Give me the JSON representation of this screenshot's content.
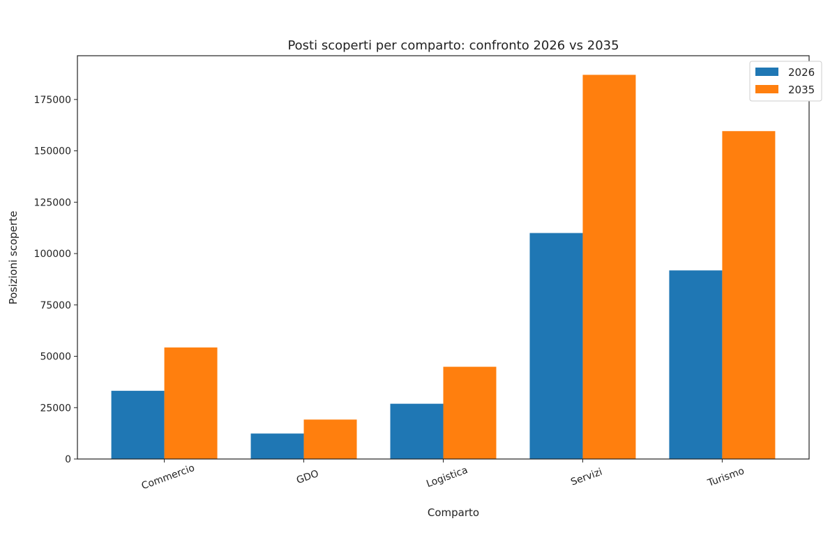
{
  "chart_data": {
    "type": "bar",
    "title": "Posti scoperti per comparto: confronto 2026 vs 2035",
    "xlabel": "Comparto",
    "ylabel": "Posizioni scoperte",
    "categories": [
      "Commercio",
      "GDO",
      "Logistica",
      "Servizi",
      "Turismo"
    ],
    "series": [
      {
        "name": "2026",
        "color": "#1f77b4",
        "values": [
          33200,
          12400,
          26900,
          110000,
          91800
        ]
      },
      {
        "name": "2035",
        "color": "#ff7f0e",
        "values": [
          54300,
          19200,
          44900,
          187000,
          159600
        ]
      }
    ],
    "yticks": [
      0,
      25000,
      50000,
      75000,
      100000,
      125000,
      150000,
      175000
    ],
    "ytick_labels": [
      "0",
      "25000",
      "50000",
      "75000",
      "100000",
      "125000",
      "150000",
      "175000"
    ],
    "ylim": [
      0,
      196300
    ],
    "grid": false,
    "legend": "top-right"
  }
}
